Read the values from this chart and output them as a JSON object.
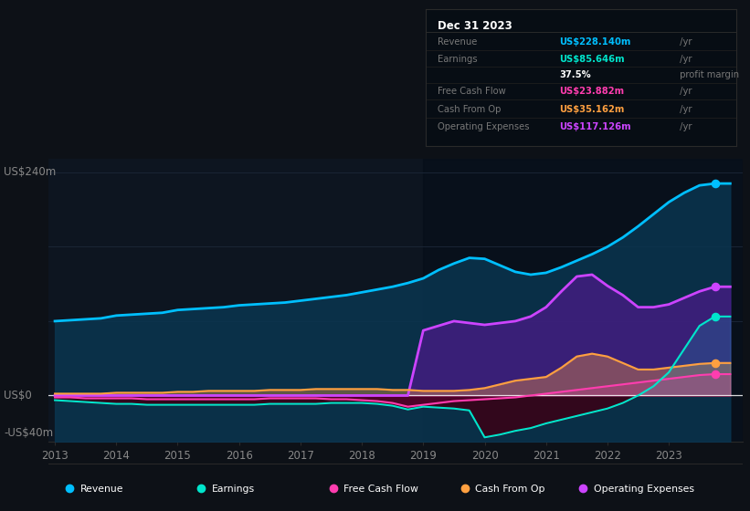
{
  "background_color": "#0d1117",
  "plot_bg_color": "#0d1520",
  "grid_color": "#1a2535",
  "zero_line_color": "#ffffff",
  "ylabel_240": "US$240m",
  "ylabel_0": "US$0",
  "ylabel_neg40": "-US$40m",
  "ylim": [
    -50,
    255
  ],
  "xlim": [
    2012.9,
    2024.2
  ],
  "xticks": [
    2013,
    2014,
    2015,
    2016,
    2017,
    2018,
    2019,
    2020,
    2021,
    2022,
    2023
  ],
  "series": {
    "Revenue": {
      "color": "#00bfff",
      "fill_color": "#0a3550",
      "fill_alpha": 0.85
    },
    "Earnings": {
      "color": "#00e5cc",
      "fill_color": "#00e5cc",
      "fill_alpha": 0.12
    },
    "FreeCashFlow": {
      "color": "#ff3daf",
      "fill_color": "#ff3daf",
      "fill_alpha": 0.3
    },
    "CashFromOp": {
      "color": "#ffa040",
      "fill_color": "#ffa040",
      "fill_alpha": 0.35
    },
    "OperatingExpenses": {
      "color": "#cc44ff",
      "fill_color": "#4a1a88",
      "fill_alpha": 0.75
    }
  },
  "shade_start": 2019.0,
  "shade_color": "#050d18",
  "shade_alpha": 0.55,
  "info_panel": {
    "bg_color": "#070d14",
    "border_color": "#2a2a2a",
    "title": "Dec 31 2023",
    "title_color": "#ffffff",
    "label_color": "#777777",
    "unit_color": "#777777"
  },
  "legend_bg": "#0d1117",
  "legend_border": "#2a2a2a"
}
